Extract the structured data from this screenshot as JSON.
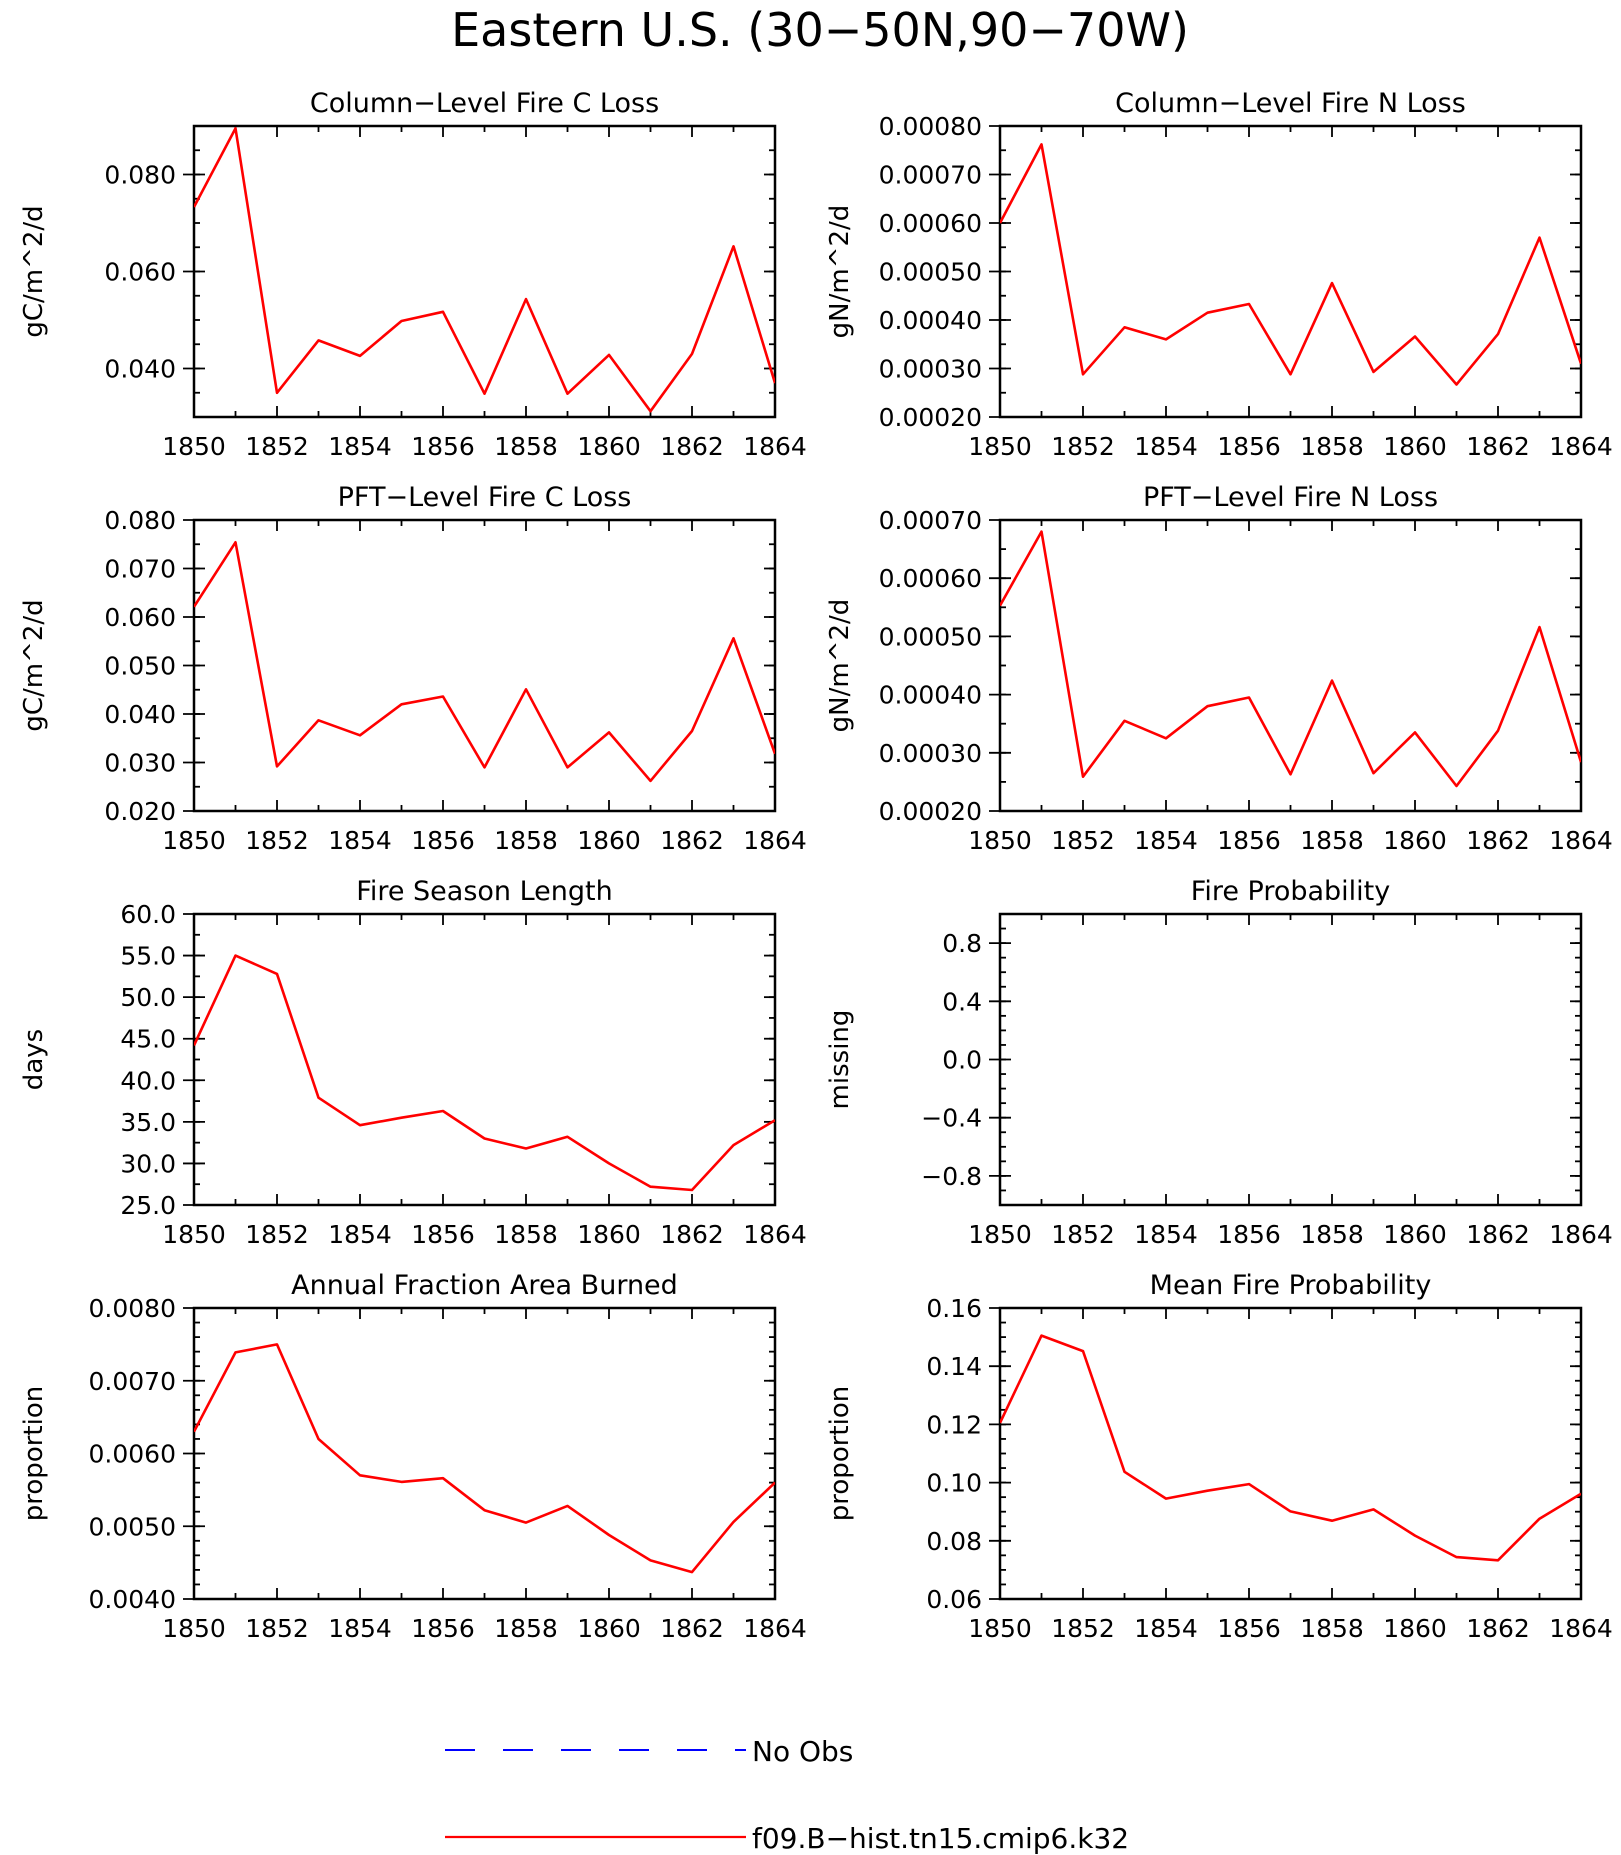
{
  "figure_title": "Eastern U.S. (30−50N,90−70W)",
  "colors": {
    "model": "#ff0000",
    "obs": "#0000ff"
  },
  "chart_data": [
    {
      "type": "line",
      "title": "Column−Level Fire C Loss",
      "ylabel": "gC/m^2/d",
      "xlabel": "",
      "ylim": [
        0.03,
        0.09
      ],
      "yticks": [
        0.04,
        0.06,
        0.08
      ],
      "ytick_labels": [
        "0.040",
        "0.060",
        "0.080"
      ],
      "yminor": [
        0.03,
        0.035,
        0.04,
        0.045,
        0.05,
        0.055,
        0.06,
        0.065,
        0.07,
        0.075,
        0.08,
        0.085,
        0.09
      ],
      "x": [
        1850,
        1851,
        1852,
        1853,
        1854,
        1855,
        1856,
        1857,
        1858,
        1859,
        1860,
        1861,
        1862,
        1863,
        1864
      ],
      "xticks": [
        1850,
        1852,
        1854,
        1856,
        1858,
        1860,
        1862,
        1864
      ],
      "series": [
        {
          "name": "f09.B−hist.tn15.cmip6.k32",
          "values": [
            0.0733,
            0.0895,
            0.035,
            0.0458,
            0.0426,
            0.0498,
            0.0517,
            0.0348,
            0.0543,
            0.0348,
            0.0428,
            0.0312,
            0.043,
            0.0652,
            0.037
          ]
        }
      ]
    },
    {
      "type": "line",
      "title": "Column−Level Fire N Loss",
      "ylabel": "gN/m^2/d",
      "xlabel": "",
      "ylim": [
        0.0002,
        0.0008
      ],
      "yticks": [
        0.0002,
        0.0003,
        0.0004,
        0.0005,
        0.0006,
        0.0007,
        0.0008
      ],
      "ytick_labels": [
        "0.00020",
        "0.00030",
        "0.00040",
        "0.00050",
        "0.00060",
        "0.00070",
        "0.00080"
      ],
      "yminor": [
        0.0002,
        0.00025,
        0.0003,
        0.00035,
        0.0004,
        0.00045,
        0.0005,
        0.00055,
        0.0006,
        0.00065,
        0.0007,
        0.00075,
        0.0008
      ],
      "x": [
        1850,
        1851,
        1852,
        1853,
        1854,
        1855,
        1856,
        1857,
        1858,
        1859,
        1860,
        1861,
        1862,
        1863,
        1864
      ],
      "xticks": [
        1850,
        1852,
        1854,
        1856,
        1858,
        1860,
        1862,
        1864
      ],
      "series": [
        {
          "name": "f09.B−hist.tn15.cmip6.k32",
          "values": [
            0.0006,
            0.000762,
            0.000288,
            0.000385,
            0.00036,
            0.000415,
            0.000433,
            0.000288,
            0.000476,
            0.000293,
            0.000366,
            0.000267,
            0.000371,
            0.00057,
            0.00031
          ]
        }
      ]
    },
    {
      "type": "line",
      "title": "PFT−Level Fire C Loss",
      "ylabel": "gC/m^2/d",
      "xlabel": "",
      "ylim": [
        0.02,
        0.08
      ],
      "yticks": [
        0.02,
        0.03,
        0.04,
        0.05,
        0.06,
        0.07,
        0.08
      ],
      "ytick_labels": [
        "0.020",
        "0.030",
        "0.040",
        "0.050",
        "0.060",
        "0.070",
        "0.080"
      ],
      "yminor": [
        0.02,
        0.025,
        0.03,
        0.035,
        0.04,
        0.045,
        0.05,
        0.055,
        0.06,
        0.065,
        0.07,
        0.075,
        0.08
      ],
      "x": [
        1850,
        1851,
        1852,
        1853,
        1854,
        1855,
        1856,
        1857,
        1858,
        1859,
        1860,
        1861,
        1862,
        1863,
        1864
      ],
      "xticks": [
        1850,
        1852,
        1854,
        1856,
        1858,
        1860,
        1862,
        1864
      ],
      "series": [
        {
          "name": "f09.B−hist.tn15.cmip6.k32",
          "values": [
            0.0621,
            0.0754,
            0.0292,
            0.0387,
            0.0356,
            0.042,
            0.0436,
            0.029,
            0.0451,
            0.029,
            0.0362,
            0.0262,
            0.0365,
            0.0556,
            0.0318
          ]
        }
      ]
    },
    {
      "type": "line",
      "title": "PFT−Level Fire N Loss",
      "ylabel": "gN/m^2/d",
      "xlabel": "",
      "ylim": [
        0.0002,
        0.0007
      ],
      "yticks": [
        0.0002,
        0.0003,
        0.0004,
        0.0005,
        0.0006,
        0.0007
      ],
      "ytick_labels": [
        "0.00020",
        "0.00030",
        "0.00040",
        "0.00050",
        "0.00060",
        "0.00070"
      ],
      "yminor": [
        0.0002,
        0.00025,
        0.0003,
        0.00035,
        0.0004,
        0.00045,
        0.0005,
        0.00055,
        0.0006,
        0.00065,
        0.0007
      ],
      "x": [
        1850,
        1851,
        1852,
        1853,
        1854,
        1855,
        1856,
        1857,
        1858,
        1859,
        1860,
        1861,
        1862,
        1863,
        1864
      ],
      "xticks": [
        1850,
        1852,
        1854,
        1856,
        1858,
        1860,
        1862,
        1864
      ],
      "series": [
        {
          "name": "f09.B−hist.tn15.cmip6.k32",
          "values": [
            0.000553,
            0.00068,
            0.000259,
            0.000355,
            0.000325,
            0.00038,
            0.000395,
            0.000263,
            0.000424,
            0.000265,
            0.000335,
            0.000243,
            0.000338,
            0.000516,
            0.000284
          ]
        }
      ]
    },
    {
      "type": "line",
      "title": "Fire Season Length",
      "ylabel": "days",
      "xlabel": "",
      "ylim": [
        25,
        60
      ],
      "yticks": [
        25,
        30,
        35,
        40,
        45,
        50,
        55,
        60
      ],
      "ytick_labels": [
        "25.0",
        "30.0",
        "35.0",
        "40.0",
        "45.0",
        "50.0",
        "55.0",
        "60.0"
      ],
      "yminor": [
        25,
        27.5,
        30,
        32.5,
        35,
        37.5,
        40,
        42.5,
        45,
        47.5,
        50,
        52.5,
        55,
        57.5,
        60
      ],
      "x": [
        1850,
        1851,
        1852,
        1853,
        1854,
        1855,
        1856,
        1857,
        1858,
        1859,
        1860,
        1861,
        1862,
        1863,
        1864
      ],
      "xticks": [
        1850,
        1852,
        1854,
        1856,
        1858,
        1860,
        1862,
        1864
      ],
      "series": [
        {
          "name": "f09.B−hist.tn15.cmip6.k32",
          "values": [
            44.2,
            55.0,
            52.8,
            37.9,
            34.6,
            35.5,
            36.3,
            33.0,
            31.8,
            33.2,
            30.0,
            27.2,
            26.8,
            32.2,
            35.2
          ]
        }
      ]
    },
    {
      "type": "line",
      "title": "Fire Probability",
      "ylabel": "missing",
      "xlabel": "",
      "ylim": [
        -1.0,
        1.0
      ],
      "yticks": [
        -0.8,
        -0.4,
        0.0,
        0.4,
        0.8
      ],
      "ytick_labels": [
        "−0.8",
        "−0.4",
        "0.0",
        "0.4",
        "0.8"
      ],
      "yminor": [
        -1.0,
        -0.9,
        -0.8,
        -0.7,
        -0.6,
        -0.5,
        -0.4,
        -0.3,
        -0.2,
        -0.1,
        0.0,
        0.1,
        0.2,
        0.3,
        0.4,
        0.5,
        0.6,
        0.7,
        0.8,
        0.9,
        1.0
      ],
      "x": [
        1850,
        1851,
        1852,
        1853,
        1854,
        1855,
        1856,
        1857,
        1858,
        1859,
        1860,
        1861,
        1862,
        1863,
        1864
      ],
      "xticks": [
        1850,
        1852,
        1854,
        1856,
        1858,
        1860,
        1862,
        1864
      ],
      "series": []
    },
    {
      "type": "line",
      "title": "Annual Fraction Area Burned",
      "ylabel": "proportion",
      "xlabel": "",
      "ylim": [
        0.004,
        0.008
      ],
      "yticks": [
        0.004,
        0.005,
        0.006,
        0.007,
        0.008
      ],
      "ytick_labels": [
        "0.0040",
        "0.0050",
        "0.0060",
        "0.0070",
        "0.0080"
      ],
      "yminor": [
        0.004,
        0.0042,
        0.0044,
        0.0046,
        0.0048,
        0.005,
        0.0052,
        0.0054,
        0.0056,
        0.0058,
        0.006,
        0.0062,
        0.0064,
        0.0066,
        0.0068,
        0.007,
        0.0072,
        0.0074,
        0.0076,
        0.0078,
        0.008
      ],
      "x": [
        1850,
        1851,
        1852,
        1853,
        1854,
        1855,
        1856,
        1857,
        1858,
        1859,
        1860,
        1861,
        1862,
        1863,
        1864
      ],
      "xticks": [
        1850,
        1852,
        1854,
        1856,
        1858,
        1860,
        1862,
        1864
      ],
      "series": [
        {
          "name": "f09.B−hist.tn15.cmip6.k32",
          "values": [
            0.0063,
            0.00739,
            0.0075,
            0.0062,
            0.0057,
            0.00561,
            0.00566,
            0.00522,
            0.00505,
            0.00528,
            0.00488,
            0.00453,
            0.00437,
            0.00506,
            0.0056
          ]
        }
      ]
    },
    {
      "type": "line",
      "title": "Mean Fire Probability",
      "ylabel": "proportion",
      "xlabel": "",
      "ylim": [
        0.06,
        0.16
      ],
      "yticks": [
        0.06,
        0.08,
        0.1,
        0.12,
        0.14,
        0.16
      ],
      "ytick_labels": [
        "0.06",
        "0.08",
        "0.10",
        "0.12",
        "0.14",
        "0.16"
      ],
      "yminor": [
        0.06,
        0.065,
        0.07,
        0.075,
        0.08,
        0.085,
        0.09,
        0.095,
        0.1,
        0.105,
        0.11,
        0.115,
        0.12,
        0.125,
        0.13,
        0.135,
        0.14,
        0.145,
        0.15,
        0.155,
        0.16
      ],
      "x": [
        1850,
        1851,
        1852,
        1853,
        1854,
        1855,
        1856,
        1857,
        1858,
        1859,
        1860,
        1861,
        1862,
        1863,
        1864
      ],
      "xticks": [
        1850,
        1852,
        1854,
        1856,
        1858,
        1860,
        1862,
        1864
      ],
      "series": [
        {
          "name": "f09.B−hist.tn15.cmip6.k32",
          "values": [
            0.1205,
            0.1505,
            0.1452,
            0.1037,
            0.0945,
            0.0972,
            0.0995,
            0.0901,
            0.0869,
            0.0908,
            0.0818,
            0.0744,
            0.0733,
            0.0876,
            0.0962
          ]
        }
      ]
    }
  ],
  "legend": [
    {
      "label": "No Obs",
      "color": "#0000ff",
      "style": "dashed"
    },
    {
      "label": "f09.B−hist.tn15.cmip6.k32",
      "color": "#ff0000",
      "style": "solid"
    }
  ]
}
